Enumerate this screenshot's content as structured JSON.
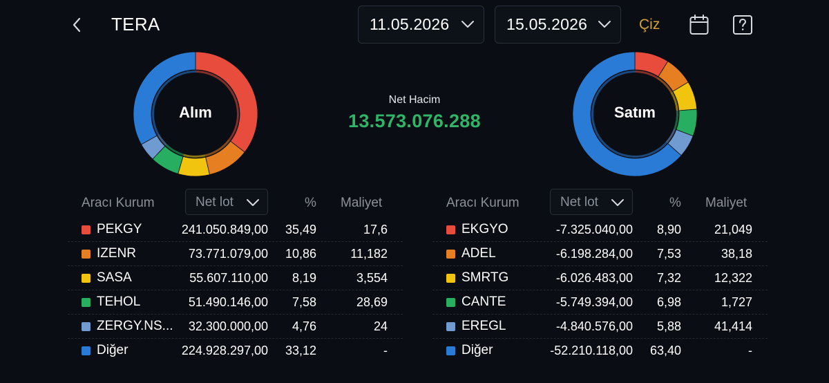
{
  "header": {
    "title": "TERA",
    "start_date": "11.05.2026",
    "end_date": "15.05.2026",
    "draw_label": "Çiz",
    "back_icon": "chevron-left-icon",
    "calendar_icon": "calendar-icon",
    "help_icon": "question-mark-icon"
  },
  "summary": {
    "net_volume_label": "Net Hacim",
    "net_volume_value": "13.573.076.288"
  },
  "colors": {
    "red": "#e84c3d",
    "orange": "#e67e22",
    "yellow": "#f1c40f",
    "green": "#27ae60",
    "lightblue": "#6f9bd1",
    "blue": "#2a7bd6"
  },
  "buy": {
    "donut_label": "Alım",
    "headers": {
      "broker": "Aracı Kurum",
      "select": "Net lot",
      "pct": "%",
      "cost": "Maliyet"
    },
    "rows": [
      {
        "name": "PEKGY",
        "lot": "241.050.849,00",
        "pct": "35,49",
        "cost": "17,6",
        "color": "#e84c3d"
      },
      {
        "name": "IZENR",
        "lot": "73.771.079,00",
        "pct": "10,86",
        "cost": "11,182",
        "color": "#e67e22"
      },
      {
        "name": "SASA",
        "lot": "55.607.110,00",
        "pct": "8,19",
        "cost": "3,554",
        "color": "#f1c40f"
      },
      {
        "name": "TEHOL",
        "lot": "51.490.146,00",
        "pct": "7,58",
        "cost": "28,69",
        "color": "#27ae60"
      },
      {
        "name": "ZERGY.NS...",
        "lot": "32.300.000,00",
        "pct": "4,76",
        "cost": "24",
        "color": "#6f9bd1"
      },
      {
        "name": "Diğer",
        "lot": "224.928.297,00",
        "pct": "33,12",
        "cost": "-",
        "color": "#2a7bd6"
      }
    ]
  },
  "sell": {
    "donut_label": "Satım",
    "headers": {
      "broker": "Aracı Kurum",
      "select": "Net lot",
      "pct": "%",
      "cost": "Maliyet"
    },
    "rows": [
      {
        "name": "EKGYO",
        "lot": "-7.325.040,00",
        "pct": "8,90",
        "cost": "21,049",
        "color": "#e84c3d"
      },
      {
        "name": "ADEL",
        "lot": "-6.198.284,00",
        "pct": "7,53",
        "cost": "38,18",
        "color": "#e67e22"
      },
      {
        "name": "SMRTG",
        "lot": "-6.026.483,00",
        "pct": "7,32",
        "cost": "12,322",
        "color": "#f1c40f"
      },
      {
        "name": "CANTE",
        "lot": "-5.749.394,00",
        "pct": "6,98",
        "cost": "1,727",
        "color": "#27ae60"
      },
      {
        "name": "EREGL",
        "lot": "-4.840.576,00",
        "pct": "5,88",
        "cost": "41,414",
        "color": "#6f9bd1"
      },
      {
        "name": "Diğer",
        "lot": "-52.210.118,00",
        "pct": "63,40",
        "cost": "-",
        "color": "#2a7bd6"
      }
    ]
  }
}
